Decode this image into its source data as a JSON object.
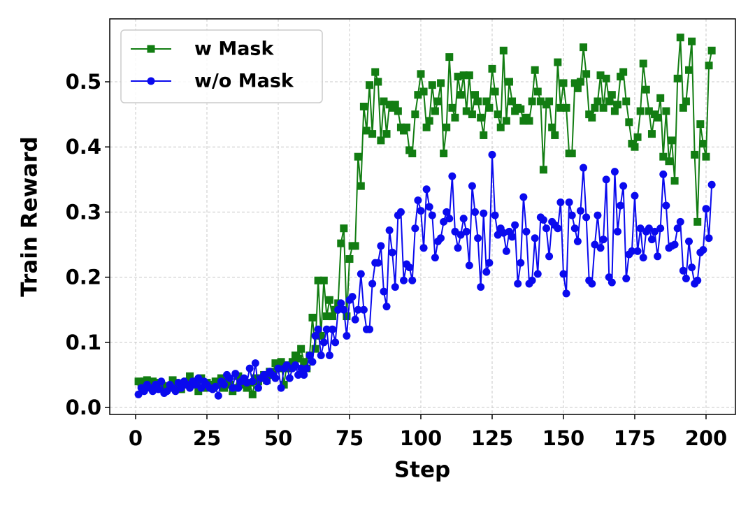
{
  "chart_data": {
    "type": "line",
    "xlabel": "Step",
    "ylabel": "Train Reward",
    "xlim": [
      -9.07,
      210.3
    ],
    "ylim": [
      -0.0107,
      0.5966
    ],
    "xticks": [
      0,
      25,
      50,
      75,
      100,
      125,
      150,
      175,
      200
    ],
    "yticks": [
      {
        "value": 0,
        "label": "0.0"
      },
      0.1,
      0.2,
      0.3,
      0.4,
      0.5
    ],
    "grid": true,
    "legend": "upper left",
    "x": [
      1,
      2,
      3,
      4,
      5,
      6,
      7,
      8,
      9,
      10,
      11,
      12,
      13,
      14,
      15,
      16,
      17,
      18,
      19,
      20,
      21,
      22,
      23,
      24,
      25,
      26,
      27,
      28,
      29,
      30,
      31,
      32,
      33,
      34,
      35,
      36,
      37,
      38,
      39,
      40,
      41,
      42,
      43,
      44,
      45,
      46,
      47,
      48,
      49,
      50,
      51,
      52,
      53,
      54,
      55,
      56,
      57,
      58,
      59,
      60,
      61,
      62,
      63,
      64,
      65,
      66,
      67,
      68,
      69,
      70,
      71,
      72,
      73,
      74,
      75,
      76,
      77,
      78,
      79,
      80,
      81,
      82,
      83,
      84,
      85,
      86,
      87,
      88,
      89,
      90,
      91,
      92,
      93,
      94,
      95,
      96,
      97,
      98,
      99,
      100,
      101,
      102,
      103,
      104,
      105,
      106,
      107,
      108,
      109,
      110,
      111,
      112,
      113,
      114,
      115,
      116,
      117,
      118,
      119,
      120,
      121,
      122,
      123,
      124,
      125,
      126,
      127,
      128,
      129,
      130,
      131,
      132,
      133,
      134,
      135,
      136,
      137,
      138,
      139,
      140,
      141,
      142,
      143,
      144,
      145,
      146,
      147,
      148,
      149,
      150,
      151,
      152,
      153,
      154,
      155,
      156,
      157,
      158,
      159,
      160,
      161,
      162,
      163,
      164,
      165,
      166,
      167,
      168,
      169,
      170,
      171,
      172,
      173,
      174,
      175,
      176,
      177,
      178,
      179,
      180,
      181,
      182,
      183,
      184,
      185,
      186,
      187,
      188,
      189,
      190,
      191,
      192,
      193,
      194,
      195,
      196,
      197,
      198,
      199,
      200,
      201,
      202
    ],
    "series": [
      {
        "name": "w Mask",
        "color": "#127d12",
        "marker": "square",
        "values": [
          0.04,
          0.038,
          0.04,
          0.042,
          0.035,
          0.04,
          0.03,
          0.038,
          0.035,
          0.03,
          0.033,
          0.03,
          0.042,
          0.038,
          0.03,
          0.028,
          0.035,
          0.04,
          0.048,
          0.035,
          0.04,
          0.025,
          0.045,
          0.03,
          0.038,
          0.035,
          0.03,
          0.04,
          0.035,
          0.045,
          0.03,
          0.04,
          0.035,
          0.025,
          0.03,
          0.048,
          0.04,
          0.035,
          0.03,
          0.038,
          0.02,
          0.045,
          0.04,
          0.045,
          0.05,
          0.042,
          0.055,
          0.05,
          0.068,
          0.06,
          0.07,
          0.035,
          0.065,
          0.06,
          0.07,
          0.08,
          0.075,
          0.09,
          0.07,
          0.06,
          0.08,
          0.138,
          0.09,
          0.195,
          0.11,
          0.195,
          0.14,
          0.165,
          0.14,
          0.15,
          0.16,
          0.252,
          0.275,
          0.14,
          0.228,
          0.248,
          0.248,
          0.385,
          0.34,
          0.462,
          0.425,
          0.495,
          0.42,
          0.515,
          0.5,
          0.41,
          0.47,
          0.42,
          0.465,
          0.46,
          0.465,
          0.455,
          0.43,
          0.425,
          0.43,
          0.395,
          0.39,
          0.45,
          0.48,
          0.512,
          0.485,
          0.43,
          0.44,
          0.495,
          0.455,
          0.47,
          0.498,
          0.39,
          0.43,
          0.538,
          0.46,
          0.445,
          0.508,
          0.48,
          0.51,
          0.455,
          0.51,
          0.45,
          0.48,
          0.47,
          0.445,
          0.418,
          0.47,
          0.46,
          0.52,
          0.485,
          0.45,
          0.43,
          0.548,
          0.44,
          0.5,
          0.47,
          0.455,
          0.46,
          0.458,
          0.44,
          0.445,
          0.44,
          0.47,
          0.518,
          0.485,
          0.47,
          0.365,
          0.465,
          0.47,
          0.43,
          0.418,
          0.53,
          0.46,
          0.498,
          0.46,
          0.39,
          0.39,
          0.498,
          0.49,
          0.5,
          0.553,
          0.512,
          0.45,
          0.445,
          0.46,
          0.47,
          0.51,
          0.46,
          0.505,
          0.47,
          0.48,
          0.455,
          0.465,
          0.508,
          0.515,
          0.47,
          0.438,
          0.405,
          0.4,
          0.415,
          0.455,
          0.528,
          0.488,
          0.455,
          0.42,
          0.45,
          0.445,
          0.475,
          0.385,
          0.455,
          0.378,
          0.41,
          0.348,
          0.505,
          0.568,
          0.46,
          0.47,
          0.518,
          0.562,
          0.388,
          0.285,
          0.435,
          0.405,
          0.385,
          0.525,
          0.548
        ]
      },
      {
        "name": "w/o Mask",
        "color": "#0a0aee",
        "marker": "circle",
        "values": [
          0.02,
          0.03,
          0.025,
          0.035,
          0.03,
          0.025,
          0.035,
          0.028,
          0.04,
          0.022,
          0.025,
          0.035,
          0.03,
          0.025,
          0.038,
          0.03,
          0.04,
          0.035,
          0.03,
          0.04,
          0.035,
          0.045,
          0.03,
          0.04,
          0.035,
          0.03,
          0.028,
          0.032,
          0.018,
          0.04,
          0.035,
          0.05,
          0.045,
          0.03,
          0.052,
          0.03,
          0.04,
          0.045,
          0.038,
          0.06,
          0.04,
          0.068,
          0.03,
          0.045,
          0.05,
          0.04,
          0.055,
          0.05,
          0.045,
          0.06,
          0.03,
          0.06,
          0.065,
          0.045,
          0.06,
          0.065,
          0.05,
          0.06,
          0.05,
          0.06,
          0.08,
          0.07,
          0.11,
          0.12,
          0.08,
          0.1,
          0.12,
          0.08,
          0.12,
          0.1,
          0.15,
          0.16,
          0.15,
          0.11,
          0.165,
          0.17,
          0.135,
          0.15,
          0.205,
          0.15,
          0.12,
          0.12,
          0.19,
          0.222,
          0.222,
          0.248,
          0.178,
          0.155,
          0.272,
          0.238,
          0.185,
          0.295,
          0.3,
          0.195,
          0.22,
          0.215,
          0.195,
          0.275,
          0.318,
          0.302,
          0.245,
          0.335,
          0.308,
          0.295,
          0.23,
          0.255,
          0.26,
          0.285,
          0.3,
          0.29,
          0.355,
          0.27,
          0.245,
          0.265,
          0.29,
          0.27,
          0.218,
          0.34,
          0.3,
          0.26,
          0.185,
          0.298,
          0.208,
          0.222,
          0.388,
          0.295,
          0.265,
          0.275,
          0.268,
          0.24,
          0.27,
          0.262,
          0.28,
          0.19,
          0.222,
          0.323,
          0.27,
          0.19,
          0.195,
          0.26,
          0.205,
          0.292,
          0.288,
          0.275,
          0.232,
          0.285,
          0.28,
          0.275,
          0.315,
          0.205,
          0.175,
          0.315,
          0.295,
          0.275,
          0.255,
          0.302,
          0.368,
          0.292,
          0.195,
          0.19,
          0.25,
          0.295,
          0.245,
          0.258,
          0.35,
          0.2,
          0.192,
          0.362,
          0.27,
          0.31,
          0.34,
          0.198,
          0.235,
          0.24,
          0.325,
          0.24,
          0.275,
          0.23,
          0.27,
          0.275,
          0.258,
          0.27,
          0.232,
          0.275,
          0.358,
          0.31,
          0.245,
          0.248,
          0.25,
          0.275,
          0.285,
          0.21,
          0.198,
          0.255,
          0.215,
          0.19,
          0.195,
          0.238,
          0.242,
          0.305,
          0.26,
          0.342
        ]
      }
    ]
  }
}
